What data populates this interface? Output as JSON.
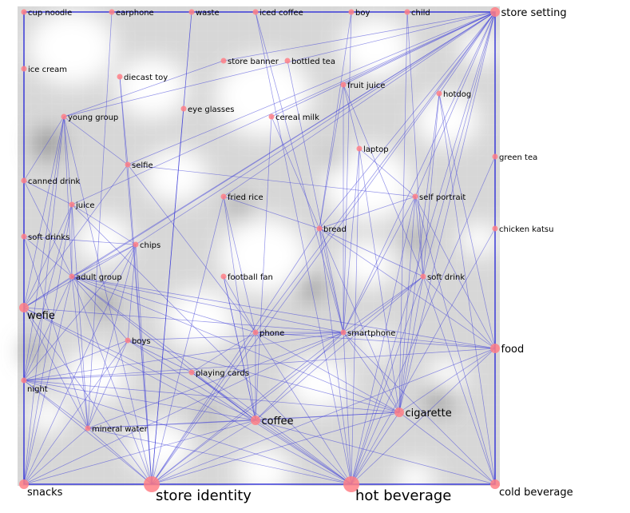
{
  "graph": {
    "accent_node": "#ff7f86",
    "accent_edge": "#3a3ad8",
    "nodes": [
      {
        "id": "cup-noodle",
        "label": "cup noodle",
        "size": "s"
      },
      {
        "id": "earphone",
        "label": "earphone",
        "size": "s"
      },
      {
        "id": "waste",
        "label": "waste",
        "size": "s"
      },
      {
        "id": "iced-coffee",
        "label": "iced coffee",
        "size": "s"
      },
      {
        "id": "boy",
        "label": "boy",
        "size": "s"
      },
      {
        "id": "child",
        "label": "child",
        "size": "s"
      },
      {
        "id": "store-setting",
        "label": "store setting",
        "size": "m"
      },
      {
        "id": "ice-cream",
        "label": "ice cream",
        "size": "s"
      },
      {
        "id": "diecast-toy",
        "label": "diecast toy",
        "size": "s"
      },
      {
        "id": "store-banner",
        "label": "store banner",
        "size": "s"
      },
      {
        "id": "bottled-tea",
        "label": "bottled tea",
        "size": "s"
      },
      {
        "id": "fruit-juice",
        "label": "fruit juice",
        "size": "s"
      },
      {
        "id": "hotdog",
        "label": "hotdog",
        "size": "s"
      },
      {
        "id": "eye-glasses",
        "label": "eye glasses",
        "size": "s"
      },
      {
        "id": "young-group",
        "label": "young group",
        "size": "s"
      },
      {
        "id": "cereal-milk",
        "label": "cereal milk",
        "size": "s"
      },
      {
        "id": "laptop",
        "label": "laptop",
        "size": "s"
      },
      {
        "id": "selfie",
        "label": "selfie",
        "size": "s"
      },
      {
        "id": "green-tea",
        "label": "green tea",
        "size": "s"
      },
      {
        "id": "canned-drink",
        "label": "canned drink",
        "size": "s"
      },
      {
        "id": "juice",
        "label": "juice",
        "size": "s"
      },
      {
        "id": "fried-rice",
        "label": "fried rice",
        "size": "s"
      },
      {
        "id": "self-portrait",
        "label": "self portrait",
        "size": "s"
      },
      {
        "id": "bread",
        "label": "bread",
        "size": "s"
      },
      {
        "id": "chicken-katsu",
        "label": "chicken katsu",
        "size": "s"
      },
      {
        "id": "soft-drinks",
        "label": "soft drinks",
        "size": "s"
      },
      {
        "id": "chips",
        "label": "chips",
        "size": "s"
      },
      {
        "id": "adult-group",
        "label": "adult group",
        "size": "s"
      },
      {
        "id": "football-fan",
        "label": "football fan",
        "size": "s"
      },
      {
        "id": "soft-drink",
        "label": "soft drink",
        "size": "s"
      },
      {
        "id": "wefie",
        "label": "wefie",
        "size": "m"
      },
      {
        "id": "phone",
        "label": "phone",
        "size": "s"
      },
      {
        "id": "smartphone",
        "label": "smartphone",
        "size": "s"
      },
      {
        "id": "boys",
        "label": "boys",
        "size": "s"
      },
      {
        "id": "food",
        "label": "food",
        "size": "m"
      },
      {
        "id": "playing-cards",
        "label": "playing cards",
        "size": "s"
      },
      {
        "id": "night",
        "label": "night",
        "size": "s"
      },
      {
        "id": "cigarette",
        "label": "cigarette",
        "size": "m"
      },
      {
        "id": "coffee",
        "label": "coffee",
        "size": "m"
      },
      {
        "id": "mineral-water",
        "label": "mineral water",
        "size": "s"
      },
      {
        "id": "snacks",
        "label": "snacks",
        "size": "m"
      },
      {
        "id": "store-identity",
        "label": "store identity",
        "size": "l"
      },
      {
        "id": "hot-beverage",
        "label": "hot beverage",
        "size": "l"
      },
      {
        "id": "cold-beverage",
        "label": "cold beverage",
        "size": "m"
      }
    ],
    "edges": [
      [
        "store-identity",
        "hot-beverage"
      ],
      [
        "store-identity",
        "snacks"
      ],
      [
        "store-identity",
        "coffee"
      ],
      [
        "store-identity",
        "cigarette"
      ],
      [
        "store-identity",
        "mineral-water"
      ],
      [
        "store-identity",
        "cold-beverage"
      ],
      [
        "store-identity",
        "food"
      ],
      [
        "store-identity",
        "store-setting"
      ],
      [
        "store-identity",
        "smartphone"
      ],
      [
        "store-identity",
        "adult-group"
      ],
      [
        "store-identity",
        "wefie"
      ],
      [
        "store-identity",
        "night"
      ],
      [
        "store-identity",
        "selfie"
      ],
      [
        "store-identity",
        "waste"
      ],
      [
        "store-identity",
        "fried-rice"
      ],
      [
        "store-identity",
        "phone"
      ],
      [
        "store-identity",
        "bread"
      ],
      [
        "store-identity",
        "soft-drink"
      ],
      [
        "store-identity",
        "young-group"
      ],
      [
        "store-identity",
        "chips"
      ],
      [
        "hot-beverage",
        "cold-beverage"
      ],
      [
        "hot-beverage",
        "snacks"
      ],
      [
        "hot-beverage",
        "coffee"
      ],
      [
        "hot-beverage",
        "cigarette"
      ],
      [
        "hot-beverage",
        "mineral-water"
      ],
      [
        "hot-beverage",
        "food"
      ],
      [
        "hot-beverage",
        "smartphone"
      ],
      [
        "hot-beverage",
        "store-setting"
      ],
      [
        "hot-beverage",
        "soft-drink"
      ],
      [
        "hot-beverage",
        "self-portrait"
      ],
      [
        "hot-beverage",
        "adult-group"
      ],
      [
        "hot-beverage",
        "wefie"
      ],
      [
        "hot-beverage",
        "night"
      ],
      [
        "hot-beverage",
        "bread"
      ],
      [
        "hot-beverage",
        "iced-coffee"
      ],
      [
        "hot-beverage",
        "phone"
      ],
      [
        "hot-beverage",
        "chicken-katsu"
      ],
      [
        "hot-beverage",
        "green-tea"
      ],
      [
        "hot-beverage",
        "juice"
      ],
      [
        "hot-beverage",
        "boys"
      ],
      [
        "hot-beverage",
        "playing-cards"
      ],
      [
        "snacks",
        "wefie"
      ],
      [
        "snacks",
        "cold-beverage"
      ],
      [
        "snacks",
        "mineral-water"
      ],
      [
        "snacks",
        "night"
      ],
      [
        "snacks",
        "adult-group"
      ],
      [
        "snacks",
        "coffee"
      ],
      [
        "snacks",
        "juice"
      ],
      [
        "snacks",
        "canned-drink"
      ],
      [
        "snacks",
        "young-group"
      ],
      [
        "snacks",
        "chips"
      ],
      [
        "snacks",
        "soft-drinks"
      ],
      [
        "snacks",
        "boys"
      ],
      [
        "snacks",
        "smartphone"
      ],
      [
        "cold-beverage",
        "food"
      ],
      [
        "cold-beverage",
        "cigarette"
      ],
      [
        "cold-beverage",
        "store-setting"
      ],
      [
        "cold-beverage",
        "soft-drink"
      ],
      [
        "cold-beverage",
        "smartphone"
      ],
      [
        "cold-beverage",
        "self-portrait"
      ],
      [
        "cold-beverage",
        "chicken-katsu"
      ],
      [
        "cold-beverage",
        "green-tea"
      ],
      [
        "cold-beverage",
        "coffee"
      ],
      [
        "cold-beverage",
        "hotdog"
      ],
      [
        "coffee",
        "cigarette"
      ],
      [
        "coffee",
        "mineral-water"
      ],
      [
        "coffee",
        "smartphone"
      ],
      [
        "coffee",
        "night"
      ],
      [
        "coffee",
        "adult-group"
      ],
      [
        "coffee",
        "phone"
      ],
      [
        "coffee",
        "fried-rice"
      ],
      [
        "coffee",
        "playing-cards"
      ],
      [
        "coffee",
        "wefie"
      ],
      [
        "coffee",
        "soft-drink"
      ],
      [
        "coffee",
        "football-fan"
      ],
      [
        "cigarette",
        "smartphone"
      ],
      [
        "cigarette",
        "food"
      ],
      [
        "cigarette",
        "store-setting"
      ],
      [
        "cigarette",
        "self-portrait"
      ],
      [
        "cigarette",
        "soft-drink"
      ],
      [
        "cigarette",
        "bread"
      ],
      [
        "cigarette",
        "mineral-water"
      ],
      [
        "cigarette",
        "hotdog"
      ],
      [
        "cigarette",
        "phone"
      ],
      [
        "cigarette",
        "laptop"
      ],
      [
        "cigarette",
        "night"
      ],
      [
        "cigarette",
        "adult-group"
      ],
      [
        "cigarette",
        "boys"
      ],
      [
        "mineral-water",
        "adult-group"
      ],
      [
        "mineral-water",
        "juice"
      ],
      [
        "mineral-water",
        "chips"
      ],
      [
        "mineral-water",
        "night"
      ],
      [
        "mineral-water",
        "wefie"
      ],
      [
        "mineral-water",
        "smartphone"
      ],
      [
        "mineral-water",
        "boys"
      ],
      [
        "mineral-water",
        "soft-drinks"
      ],
      [
        "store-setting",
        "food"
      ],
      [
        "store-setting",
        "selfie"
      ],
      [
        "store-setting",
        "smartphone"
      ],
      [
        "store-setting",
        "bread"
      ],
      [
        "store-setting",
        "wefie"
      ],
      [
        "store-setting",
        "fried-rice"
      ],
      [
        "store-setting",
        "self-portrait"
      ],
      [
        "store-setting",
        "juice"
      ],
      [
        "store-setting",
        "soft-drink"
      ],
      [
        "store-setting",
        "cereal-milk"
      ],
      [
        "store-setting",
        "store-banner"
      ],
      [
        "store-setting",
        "fruit-juice"
      ],
      [
        "store-setting",
        "adult-group"
      ],
      [
        "store-setting",
        "phone"
      ],
      [
        "store-setting",
        "hotdog"
      ],
      [
        "store-setting",
        "young-group"
      ],
      [
        "store-setting",
        "chips"
      ],
      [
        "food",
        "smartphone"
      ],
      [
        "food",
        "soft-drink"
      ],
      [
        "food",
        "self-portrait"
      ],
      [
        "food",
        "adult-group"
      ],
      [
        "food",
        "bread"
      ],
      [
        "food",
        "night"
      ],
      [
        "food",
        "phone"
      ],
      [
        "food",
        "green-tea"
      ],
      [
        "food",
        "chicken-katsu"
      ],
      [
        "smartphone",
        "self-portrait"
      ],
      [
        "smartphone",
        "adult-group"
      ],
      [
        "smartphone",
        "wefie"
      ],
      [
        "smartphone",
        "bread"
      ],
      [
        "smartphone",
        "boys"
      ],
      [
        "smartphone",
        "night"
      ],
      [
        "smartphone",
        "phone"
      ],
      [
        "smartphone",
        "laptop"
      ],
      [
        "smartphone",
        "soft-drink"
      ],
      [
        "smartphone",
        "fruit-juice"
      ],
      [
        "wefie",
        "young-group"
      ],
      [
        "wefie",
        "adult-group"
      ],
      [
        "wefie",
        "juice"
      ],
      [
        "wefie",
        "canned-drink"
      ],
      [
        "wefie",
        "night"
      ],
      [
        "wefie",
        "selfie"
      ],
      [
        "wefie",
        "soft-drinks"
      ],
      [
        "wefie",
        "chips"
      ],
      [
        "wefie",
        "ice-cream"
      ],
      [
        "adult-group",
        "juice"
      ],
      [
        "adult-group",
        "chips"
      ],
      [
        "adult-group",
        "soft-drinks"
      ],
      [
        "adult-group",
        "boys"
      ],
      [
        "adult-group",
        "night"
      ],
      [
        "adult-group",
        "young-group"
      ],
      [
        "adult-group",
        "canned-drink"
      ],
      [
        "adult-group",
        "phone"
      ],
      [
        "young-group",
        "canned-drink"
      ],
      [
        "young-group",
        "juice"
      ],
      [
        "young-group",
        "selfie"
      ],
      [
        "young-group",
        "night"
      ],
      [
        "young-group",
        "store-banner"
      ],
      [
        "night",
        "boys"
      ],
      [
        "night",
        "playing-cards"
      ],
      [
        "night",
        "chips"
      ],
      [
        "night",
        "juice"
      ],
      [
        "night",
        "canned-drink"
      ],
      [
        "night",
        "soft-drinks"
      ],
      [
        "self-portrait",
        "soft-drink"
      ],
      [
        "self-portrait",
        "bread"
      ],
      [
        "self-portrait",
        "selfie"
      ],
      [
        "self-portrait",
        "laptop"
      ],
      [
        "soft-drink",
        "bread"
      ],
      [
        "soft-drink",
        "fruit-juice"
      ],
      [
        "soft-drink",
        "hotdog"
      ],
      [
        "soft-drink",
        "child"
      ],
      [
        "bread",
        "fruit-juice"
      ],
      [
        "bread",
        "fried-rice"
      ],
      [
        "bread",
        "cereal-milk"
      ],
      [
        "bread",
        "boy"
      ],
      [
        "selfie",
        "diecast-toy"
      ],
      [
        "selfie",
        "phone"
      ],
      [
        "phone",
        "football-fan"
      ],
      [
        "phone",
        "fried-rice"
      ],
      [
        "phone",
        "playing-cards"
      ],
      [
        "earphone",
        "mineral-water"
      ],
      [
        "cup-noodle",
        "snacks"
      ],
      [
        "eye-glasses",
        "store-identity"
      ],
      [
        "cereal-milk",
        "coffee"
      ],
      [
        "bottled-tea",
        "smartphone"
      ],
      [
        "laptop",
        "hot-beverage"
      ],
      [
        "hotdog",
        "food"
      ],
      [
        "fruit-juice",
        "laptop"
      ],
      [
        "chips",
        "boys"
      ],
      [
        "juice",
        "chips"
      ],
      [
        "canned-drink",
        "juice"
      ],
      [
        "soft-drinks",
        "chips"
      ],
      [
        "boys",
        "playing-cards"
      ],
      [
        "boy",
        "smartphone"
      ],
      [
        "child",
        "cigarette"
      ],
      [
        "iced-coffee",
        "smartphone"
      ],
      [
        "football-fan",
        "coffee"
      ],
      [
        "playing-cards",
        "coffee"
      ],
      [
        "waste",
        "store-identity"
      ],
      [
        "diecast-toy",
        "store-identity"
      ]
    ]
  }
}
